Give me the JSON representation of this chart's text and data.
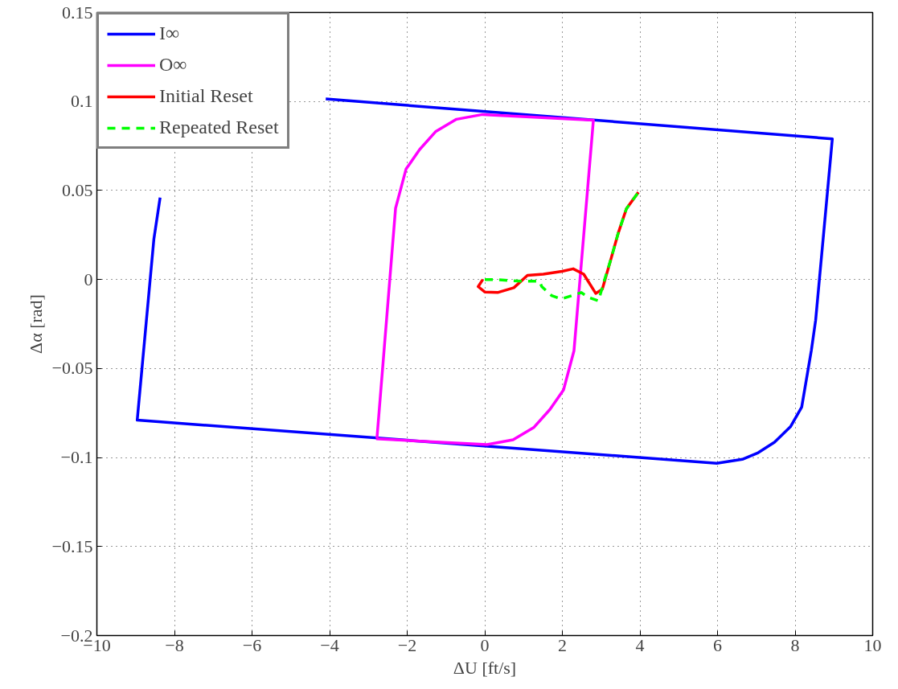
{
  "chart_data": {
    "type": "line",
    "xlabel": "ΔU [ft/s]",
    "ylabel": "Δα [rad]",
    "xlim": [
      -10,
      10
    ],
    "ylim": [
      -0.2,
      0.15
    ],
    "xticks": [
      -10,
      -8,
      -6,
      -4,
      -2,
      0,
      2,
      4,
      6,
      8,
      10
    ],
    "yticks": [
      -0.2,
      -0.15,
      -0.1,
      -0.05,
      0,
      0.05,
      0.1,
      0.15
    ],
    "grid": true,
    "legend": "top left",
    "line_style": "solid",
    "marker": "none",
    "series": [
      {
        "name": "I∞",
        "color": "#0000ff",
        "x": [
          -8.37,
          -8.53,
          -8.96,
          5.98,
          6.64,
          7.05,
          7.47,
          7.88,
          8.17,
          8.42,
          8.53,
          8.96,
          -4.1
        ],
        "values": [
          0.046,
          0.0228,
          -0.079,
          -0.1032,
          -0.101,
          -0.0973,
          -0.0914,
          -0.0827,
          -0.0717,
          -0.0397,
          -0.0228,
          0.079,
          0.1014
        ]
      },
      {
        "name": "O∞",
        "color": "#ff00ff",
        "x": [
          -2.78,
          -2.3,
          -2.03,
          -1.68,
          -1.27,
          -0.73,
          -0.06,
          2.8,
          2.3,
          2.03,
          1.68,
          1.27,
          0.73,
          0.06,
          -2.8
        ],
        "values": [
          -0.0893,
          0.04,
          0.062,
          0.073,
          0.083,
          0.09,
          0.0927,
          0.0895,
          -0.04,
          -0.062,
          -0.073,
          -0.083,
          -0.09,
          -0.0927,
          -0.0895
        ]
      },
      {
        "name": "Initial Reset",
        "color": "#ff0000",
        "x": [
          -0.05,
          -0.17,
          0.0,
          0.33,
          0.75,
          1.1,
          1.51,
          1.99,
          2.28,
          2.55,
          2.86,
          3.03,
          3.24,
          3.44,
          3.65,
          3.96
        ],
        "values": [
          0.0,
          -0.004,
          -0.007,
          -0.0073,
          -0.0046,
          0.0023,
          0.003,
          0.0046,
          0.006,
          0.003,
          -0.0078,
          -0.0055,
          0.0105,
          0.026,
          0.0397,
          0.049
        ]
      },
      {
        "name": "Repeated Reset",
        "color": "#00ff00",
        "line_style": "dashed",
        "x": [
          0.0,
          0.27,
          0.95,
          1.41,
          1.47,
          1.72,
          1.97,
          2.49,
          2.66,
          2.93,
          3.11,
          3.24,
          3.44,
          3.65,
          3.96
        ],
        "values": [
          0.0,
          0.0,
          -0.001,
          -0.001,
          -0.004,
          -0.009,
          -0.011,
          -0.0073,
          -0.01,
          -0.012,
          0.0014,
          0.0105,
          0.026,
          0.0397,
          0.049
        ]
      }
    ]
  }
}
